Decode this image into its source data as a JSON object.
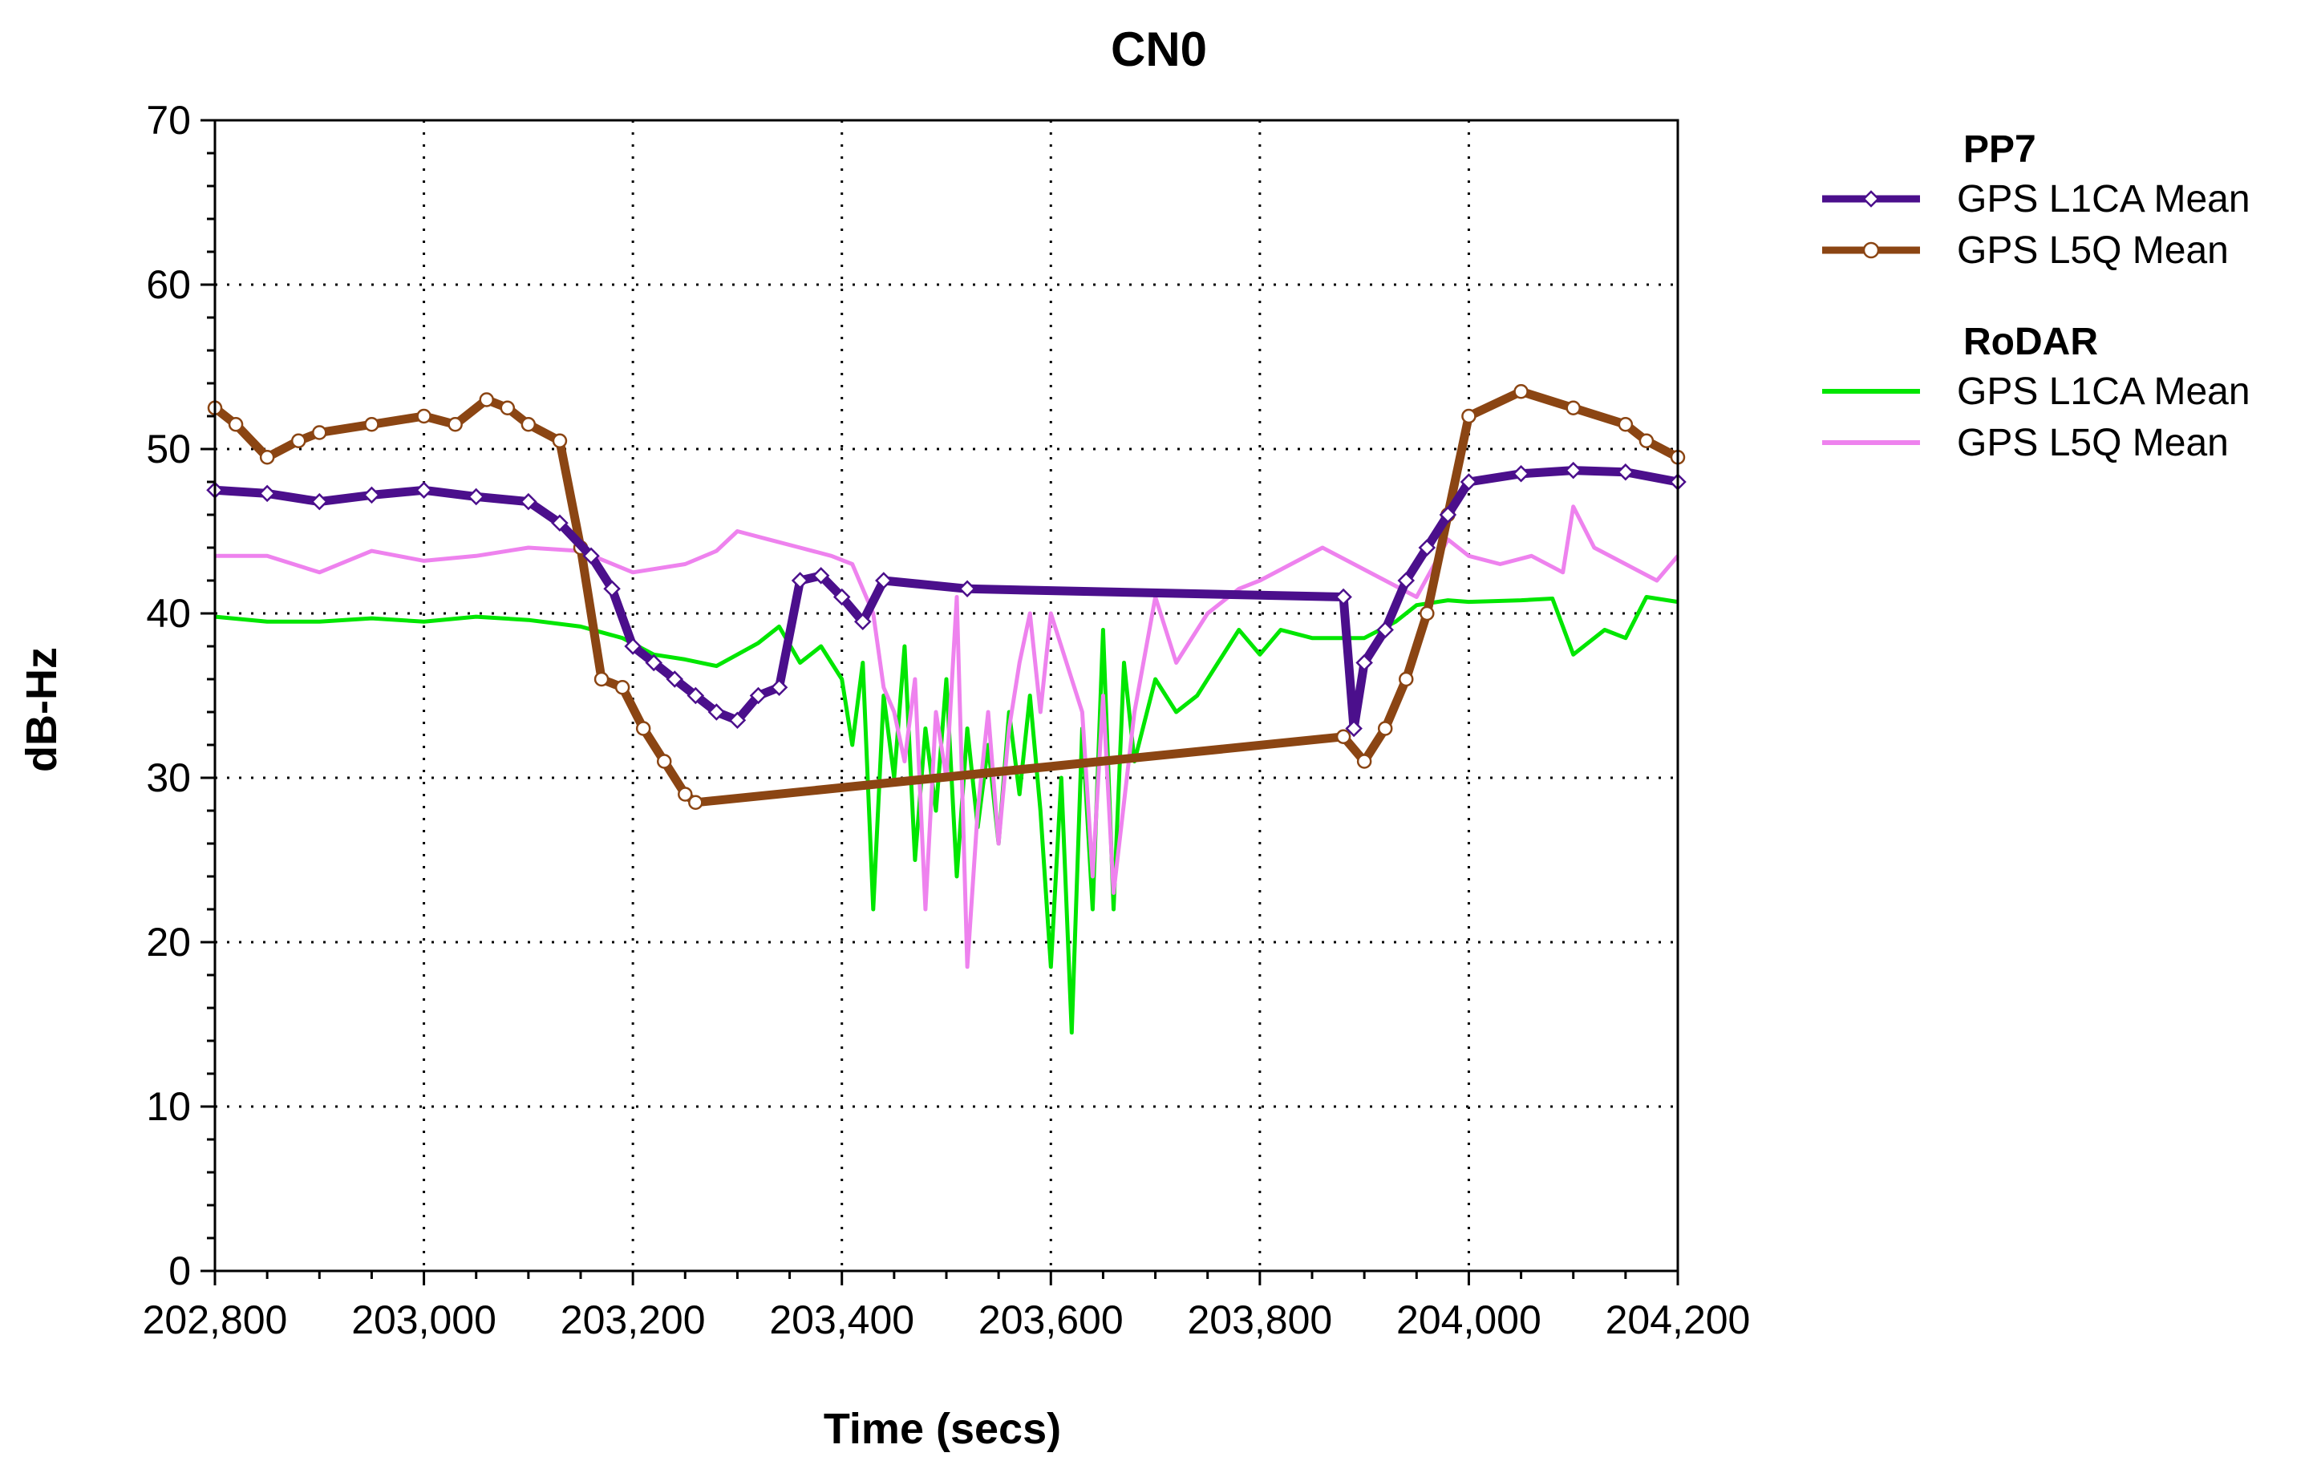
{
  "chart_data": {
    "type": "line",
    "title": "CN0",
    "xlabel": "Time (secs)",
    "ylabel": "dB-Hz",
    "xlim": [
      202800,
      204200
    ],
    "ylim": [
      0,
      70
    ],
    "xticks": [
      202800,
      203000,
      203200,
      203400,
      203600,
      203800,
      204000,
      204200
    ],
    "xtick_labels": [
      "202,800",
      "203,000",
      "203,200",
      "203,400",
      "203,600",
      "203,800",
      "204,000",
      "204,200"
    ],
    "yticks": [
      0,
      10,
      20,
      30,
      40,
      50,
      60,
      70
    ],
    "ytick_labels": [
      "0",
      "10",
      "20",
      "30",
      "40",
      "50",
      "60",
      "70"
    ],
    "grid": true,
    "legend_position": "right",
    "legend_groups": [
      {
        "name": "PP7",
        "entries": [
          0,
          1
        ]
      },
      {
        "name": "RoDAR",
        "entries": [
          2,
          3
        ]
      }
    ],
    "series": [
      {
        "name": "GPS L1CA Mean",
        "group": "PP7",
        "color": "#4b0f8c",
        "marker": "diamond",
        "x": [
          202800,
          202850,
          202900,
          202950,
          203000,
          203050,
          203100,
          203130,
          203160,
          203180,
          203200,
          203220,
          203240,
          203260,
          203280,
          203300,
          203320,
          203340,
          203360,
          203380,
          203400,
          203420,
          203440,
          203520,
          203880,
          203890,
          203900,
          203920,
          203940,
          203960,
          203980,
          204000,
          204050,
          204100,
          204150,
          204200
        ],
        "values": [
          47.5,
          47.3,
          46.8,
          47.2,
          47.5,
          47.1,
          46.8,
          45.5,
          43.5,
          41.5,
          38,
          37,
          36,
          35,
          34,
          33.5,
          35,
          35.5,
          42,
          42.3,
          41,
          39.5,
          42,
          41.5,
          41,
          33,
          37,
          39,
          42,
          44,
          46,
          48,
          48.5,
          48.7,
          48.6,
          48
        ]
      },
      {
        "name": "GPS L5Q Mean",
        "group": "PP7",
        "color": "#8b4513",
        "marker": "circle",
        "x": [
          202800,
          202820,
          202850,
          202880,
          202900,
          202950,
          203000,
          203030,
          203060,
          203080,
          203100,
          203130,
          203150,
          203170,
          203190,
          203210,
          203230,
          203250,
          203260,
          203880,
          203900,
          203920,
          203940,
          203960,
          203980,
          204000,
          204050,
          204100,
          204150,
          204170,
          204200
        ],
        "values": [
          52.5,
          51.5,
          49.5,
          50.5,
          51,
          51.5,
          52,
          51.5,
          53,
          52.5,
          51.5,
          50.5,
          44,
          36,
          35.5,
          33,
          31,
          29,
          28.5,
          32.5,
          31,
          33,
          36,
          40,
          46,
          52,
          53.5,
          52.5,
          51.5,
          50.5,
          49.5
        ]
      },
      {
        "name": "GPS L1CA Mean",
        "group": "RoDAR",
        "color": "#00e600",
        "marker": "none",
        "x": [
          202800,
          202850,
          202900,
          202950,
          203000,
          203050,
          203100,
          203150,
          203190,
          203220,
          203250,
          203280,
          203300,
          203320,
          203340,
          203360,
          203380,
          203400,
          203410,
          203420,
          203430,
          203440,
          203450,
          203460,
          203470,
          203480,
          203490,
          203500,
          203510,
          203520,
          203530,
          203540,
          203550,
          203560,
          203570,
          203580,
          203590,
          203600,
          203610,
          203620,
          203630,
          203640,
          203650,
          203660,
          203670,
          203680,
          203700,
          203720,
          203740,
          203760,
          203780,
          203800,
          203820,
          203850,
          203880,
          203900,
          203930,
          203950,
          203980,
          204000,
          204050,
          204080,
          204100,
          204130,
          204150,
          204170,
          204200
        ],
        "values": [
          39.8,
          39.5,
          39.5,
          39.7,
          39.5,
          39.8,
          39.6,
          39.2,
          38.5,
          37.5,
          37.2,
          36.8,
          37.5,
          38.2,
          39.2,
          37,
          38,
          36,
          32,
          37,
          22,
          35,
          30,
          38,
          25,
          33,
          28,
          36,
          24,
          33,
          27,
          32,
          26,
          34,
          29,
          35,
          28,
          18.5,
          30,
          14.5,
          33,
          22,
          39,
          22,
          37,
          31,
          36,
          34,
          35,
          37,
          39,
          37.5,
          39,
          38.5,
          38.5,
          38.5,
          39.5,
          40.5,
          40.8,
          40.7,
          40.8,
          40.9,
          37.5,
          39,
          38.5,
          41,
          40.7
        ]
      },
      {
        "name": "GPS L5Q Mean",
        "group": "RoDAR",
        "color": "#ee82ee",
        "marker": "none",
        "x": [
          202800,
          202850,
          202900,
          202950,
          203000,
          203050,
          203100,
          203150,
          203200,
          203250,
          203280,
          203300,
          203330,
          203360,
          203390,
          203410,
          203430,
          203440,
          203450,
          203460,
          203470,
          203480,
          203490,
          203500,
          203510,
          203520,
          203530,
          203540,
          203550,
          203560,
          203570,
          203580,
          203590,
          203600,
          203610,
          203620,
          203630,
          203640,
          203650,
          203660,
          203680,
          203700,
          203720,
          203750,
          203780,
          203800,
          203830,
          203860,
          203890,
          203920,
          203950,
          203980,
          204000,
          204030,
          204060,
          204090,
          204100,
          204120,
          204150,
          204180,
          204200
        ],
        "values": [
          43.5,
          43.5,
          42.5,
          43.8,
          43.2,
          43.5,
          44,
          43.8,
          42.5,
          43,
          43.8,
          45,
          44.5,
          44,
          43.5,
          43,
          40,
          35.5,
          34,
          31,
          36,
          22,
          34,
          30,
          41,
          18.5,
          28,
          34,
          26,
          33,
          37,
          40,
          34,
          40,
          38,
          36,
          34,
          24,
          35,
          23,
          34,
          41,
          37,
          40,
          41.5,
          42,
          43,
          44,
          43,
          42,
          41,
          44.5,
          43.5,
          43,
          43.5,
          42.5,
          46.5,
          44,
          43,
          42,
          43.5
        ]
      }
    ]
  }
}
